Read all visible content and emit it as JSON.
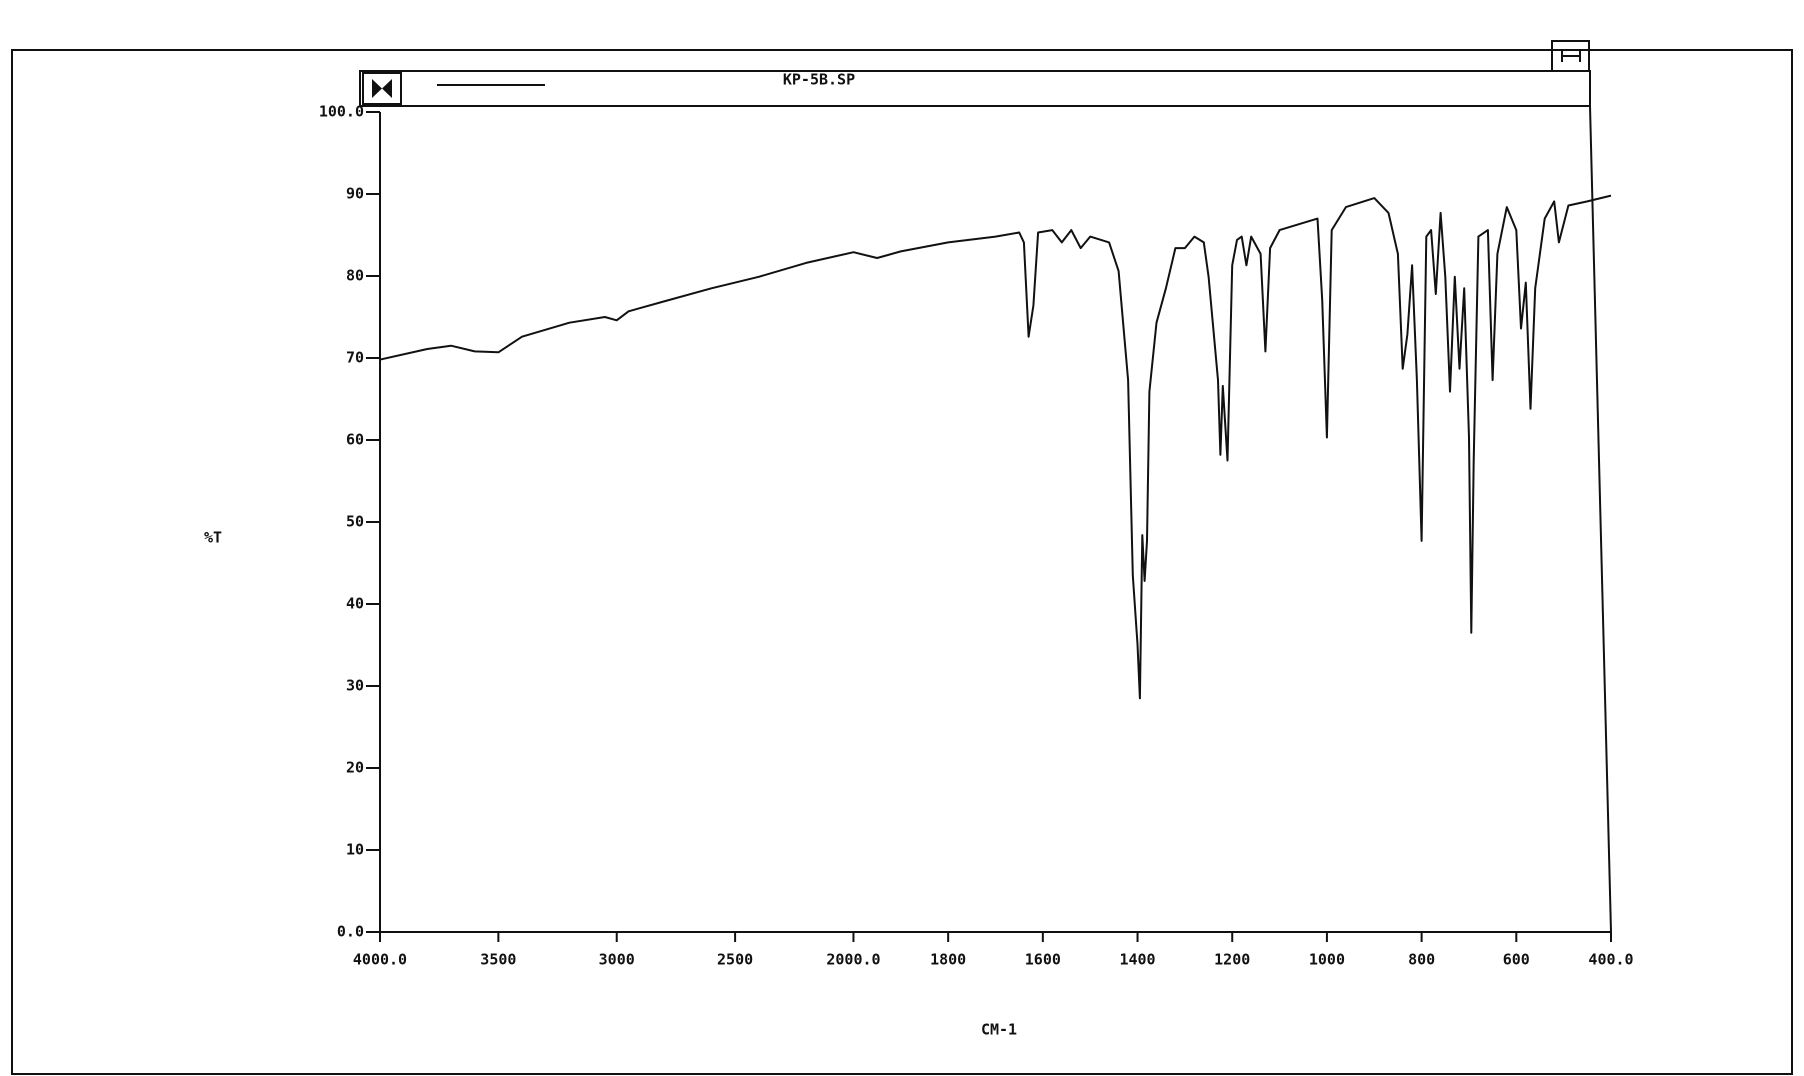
{
  "chart_data": {
    "type": "line",
    "title": "KP-5B.SP",
    "xlabel": "CM-1",
    "ylabel": "%T",
    "x_break": 2000,
    "x_break_ratio": 2,
    "color": "#111111",
    "xlim": [
      4000,
      400
    ],
    "xticks": [
      {
        "value": 4000,
        "label": "4000.0"
      },
      3500,
      3000,
      2500,
      {
        "value": 2000,
        "label": "2000.0"
      },
      1800,
      1600,
      1400,
      1200,
      1000,
      800,
      600,
      {
        "value": 400,
        "label": "400.0"
      }
    ],
    "ylim": [
      0,
      100
    ],
    "yticks": [
      {
        "value": 0,
        "label": "0.0"
      },
      10,
      20,
      30,
      40,
      50,
      60,
      70,
      80,
      90,
      {
        "value": 100,
        "label": "100.0"
      }
    ],
    "x": [
      4000,
      3800,
      3700,
      3600,
      3500,
      3400,
      3200,
      3050,
      3000,
      2950,
      2800,
      2600,
      2400,
      2200,
      2000,
      1950,
      1900,
      1800,
      1700,
      1650,
      1640,
      1630,
      1620,
      1610,
      1580,
      1560,
      1540,
      1520,
      1500,
      1460,
      1440,
      1420,
      1410,
      1400,
      1395,
      1390,
      1385,
      1380,
      1375,
      1360,
      1340,
      1320,
      1300,
      1280,
      1260,
      1250,
      1230,
      1225,
      1220,
      1210,
      1200,
      1190,
      1180,
      1170,
      1160,
      1140,
      1130,
      1120,
      1100,
      1060,
      1020,
      1010,
      1000,
      990,
      960,
      900,
      870,
      850,
      840,
      830,
      820,
      810,
      800,
      790,
      780,
      770,
      760,
      750,
      740,
      730,
      720,
      710,
      700,
      695,
      690,
      680,
      660,
      650,
      640,
      620,
      600,
      590,
      580,
      570,
      560,
      540,
      520,
      510,
      490,
      450,
      400
    ],
    "values": [
      69.8,
      71.1,
      71.5,
      70.8,
      70.7,
      72.6,
      74.3,
      75.0,
      74.6,
      75.7,
      76.9,
      78.5,
      79.9,
      81.6,
      82.9,
      82.2,
      83.0,
      84.1,
      84.8,
      85.3,
      84.1,
      72.6,
      76.4,
      85.3,
      85.6,
      84.1,
      85.6,
      83.4,
      84.8,
      84.1,
      80.6,
      67.3,
      43.5,
      35.1,
      28.5,
      48.4,
      42.8,
      47.7,
      65.9,
      74.3,
      78.5,
      83.4,
      83.4,
      84.8,
      84.1,
      79.9,
      67.3,
      58.2,
      66.6,
      57.5,
      81.3,
      84.4,
      84.8,
      81.3,
      84.8,
      82.7,
      70.8,
      83.4,
      85.6,
      86.3,
      87.0,
      77.1,
      60.3,
      85.6,
      88.4,
      89.5,
      87.7,
      82.7,
      68.7,
      72.9,
      81.3,
      67.3,
      47.7,
      84.8,
      85.6,
      77.8,
      87.7,
      79.9,
      65.9,
      79.9,
      68.7,
      78.5,
      60.3,
      36.5,
      57.5,
      84.8,
      85.6,
      67.3,
      82.7,
      88.4,
      85.6,
      73.6,
      79.2,
      63.8,
      78.5,
      87.0,
      89.1,
      84.1,
      88.6,
      89.1,
      89.8
    ]
  }
}
